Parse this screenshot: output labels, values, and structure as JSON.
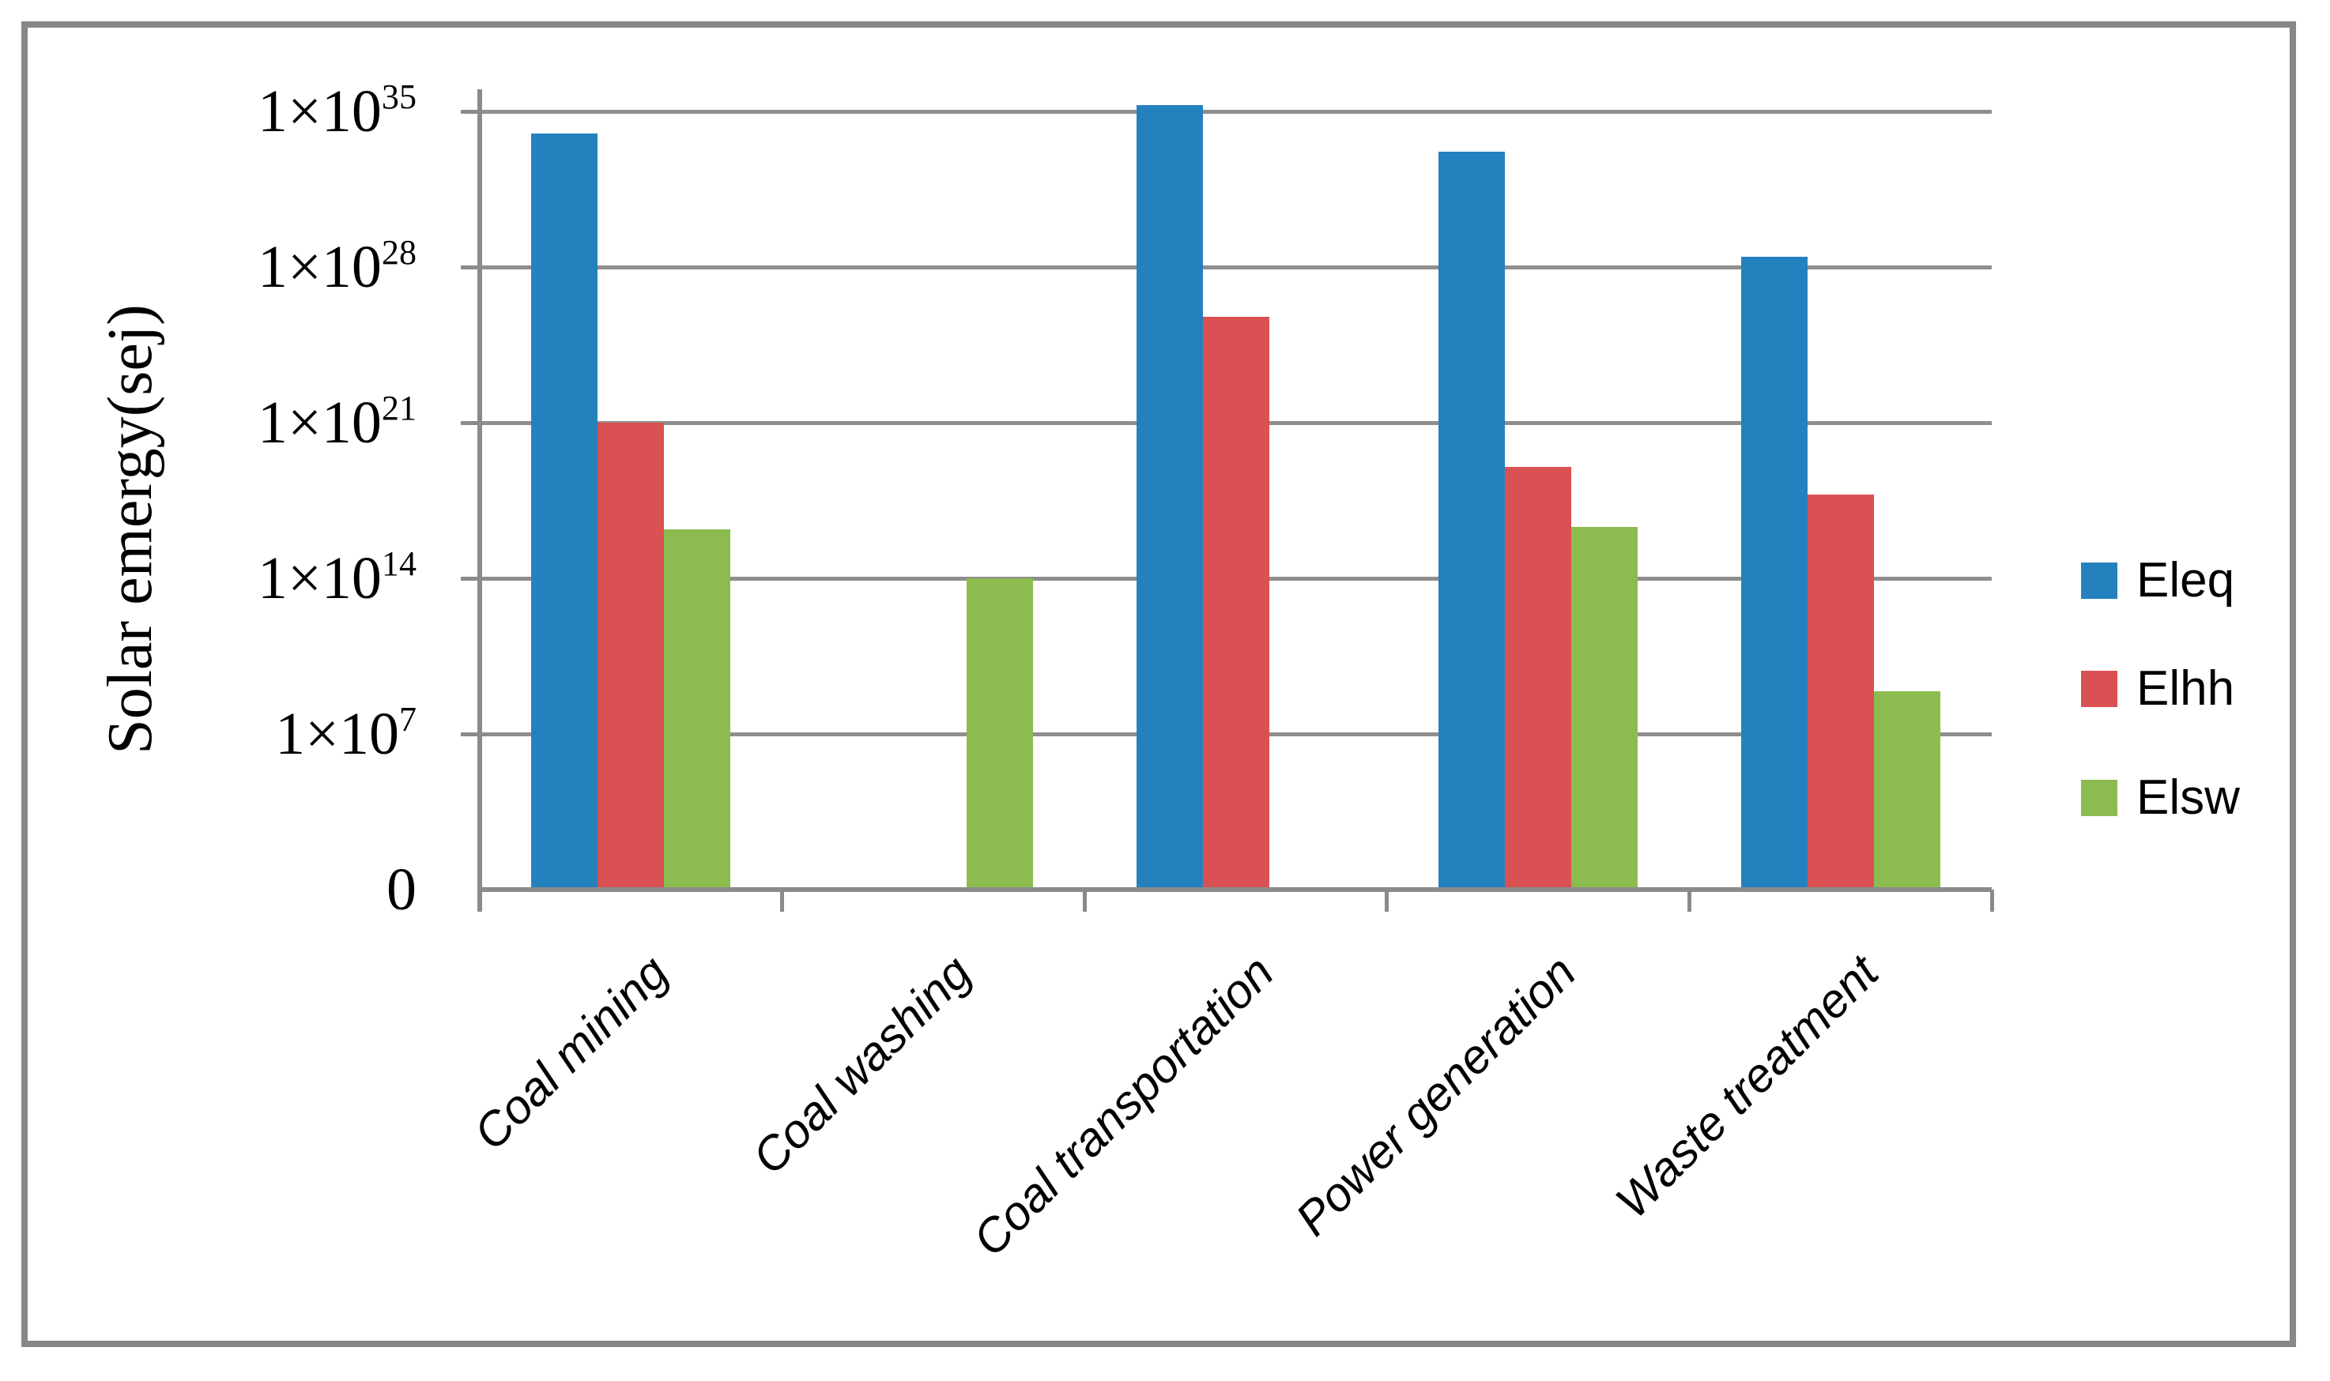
{
  "chart_data": {
    "type": "bar",
    "title": "",
    "xlabel": "",
    "ylabel": "Solar emergy(sej)",
    "y_scale": "log",
    "ylim_decades": [
      0,
      35
    ],
    "grid": true,
    "legend_position": "right",
    "y_ticks": [
      {
        "base": "0",
        "exp": null
      },
      {
        "base": "1×10",
        "exp": "7"
      },
      {
        "base": "1×10",
        "exp": "14"
      },
      {
        "base": "1×10",
        "exp": "21"
      },
      {
        "base": "1×10",
        "exp": "28"
      },
      {
        "base": "1×10",
        "exp": "35"
      }
    ],
    "categories": [
      "Coal mining",
      "Coal washing",
      "Coal transportation",
      "Power generation",
      "Waste treatment"
    ],
    "series": [
      {
        "name": "Eleq",
        "color": "#2581BE",
        "values": [
          1e+34,
          0,
          2e+35,
          1.5e+33,
          3e+28
        ]
      },
      {
        "name": "Elhh",
        "color": "#D95152",
        "values": [
          1e+21,
          0,
          6e+25,
          1e+19,
          6e+17
        ]
      },
      {
        "name": "Elsw",
        "color": "#8CBC4F",
        "values": [
          1.6e+16,
          100000000000000.0,
          0,
          2e+16,
          800000000.0
        ]
      }
    ],
    "colors": {
      "gridline": "#8e8e8e",
      "axis": "#8a8a8a",
      "frame": "#878787",
      "text": "#000000",
      "background": "#ffffff"
    }
  }
}
